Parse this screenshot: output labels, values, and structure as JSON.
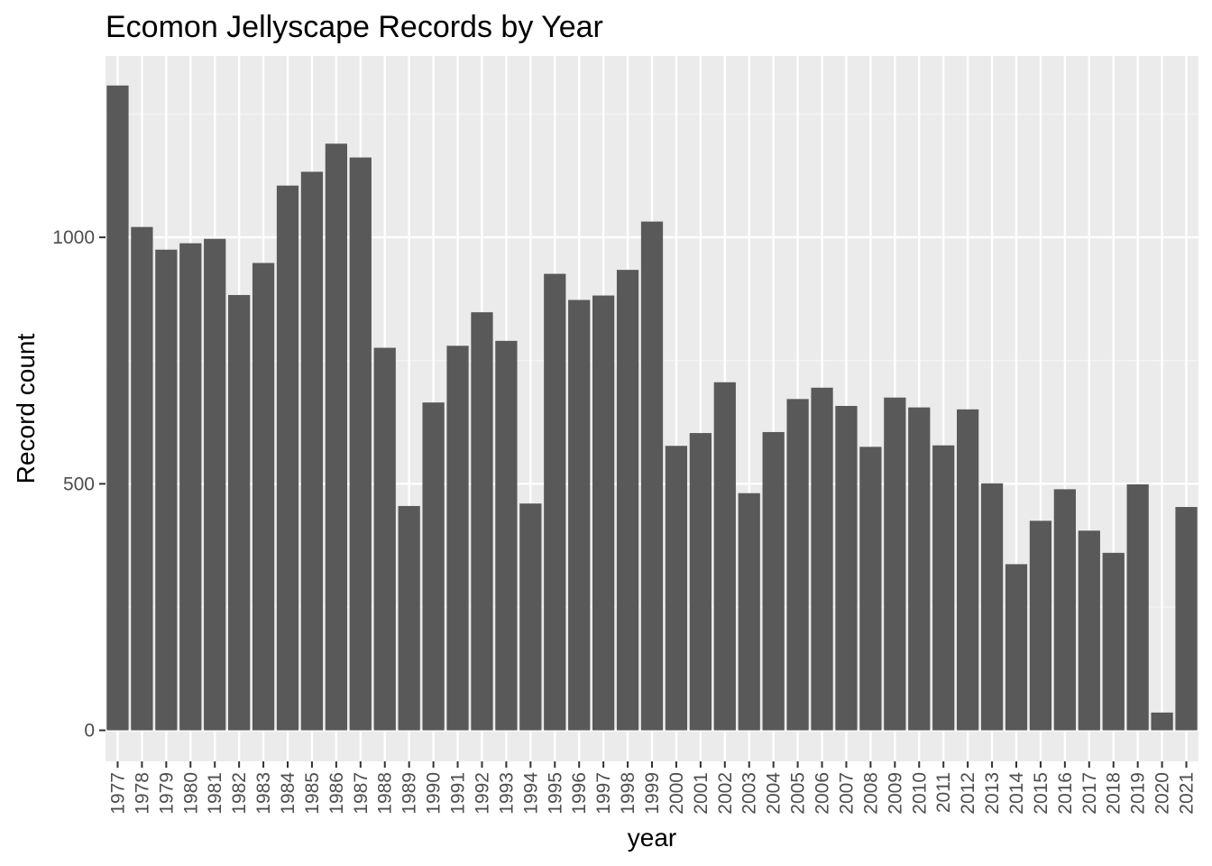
{
  "chart_data": {
    "type": "bar",
    "title": "Ecomon Jellyscape Records by Year",
    "xlabel": "year",
    "ylabel": "Record count",
    "ylim": [
      -63,
      1368
    ],
    "yticks": [
      0,
      500,
      1000
    ],
    "grid": true,
    "legend": "none",
    "categories": [
      "1977",
      "1978",
      "1979",
      "1980",
      "1981",
      "1982",
      "1983",
      "1984",
      "1985",
      "1986",
      "1987",
      "1988",
      "1989",
      "1990",
      "1991",
      "1992",
      "1993",
      "1994",
      "1995",
      "1996",
      "1997",
      "1998",
      "1999",
      "2000",
      "2001",
      "2002",
      "2003",
      "2004",
      "2005",
      "2006",
      "2007",
      "2008",
      "2009",
      "2010",
      "2011",
      "2012",
      "2013",
      "2014",
      "2015",
      "2016",
      "2017",
      "2018",
      "2019",
      "2020",
      "2021"
    ],
    "values": [
      1308,
      1021,
      975,
      988,
      997,
      883,
      948,
      1105,
      1133,
      1190,
      1162,
      776,
      455,
      665,
      780,
      848,
      790,
      460,
      926,
      873,
      882,
      934,
      1032,
      577,
      603,
      706,
      481,
      605,
      672,
      695,
      658,
      575,
      675,
      655,
      578,
      651,
      501,
      337,
      425,
      489,
      405,
      360,
      499,
      36,
      453
    ]
  },
  "colors": {
    "panel_background": "#ebebeb",
    "grid_major": "#ffffff",
    "grid_minor": "#f5f5f5",
    "bar_fill": "#595959",
    "tick_label": "#4d4d4d",
    "tick_mark": "#333333",
    "text": "#000000"
  }
}
